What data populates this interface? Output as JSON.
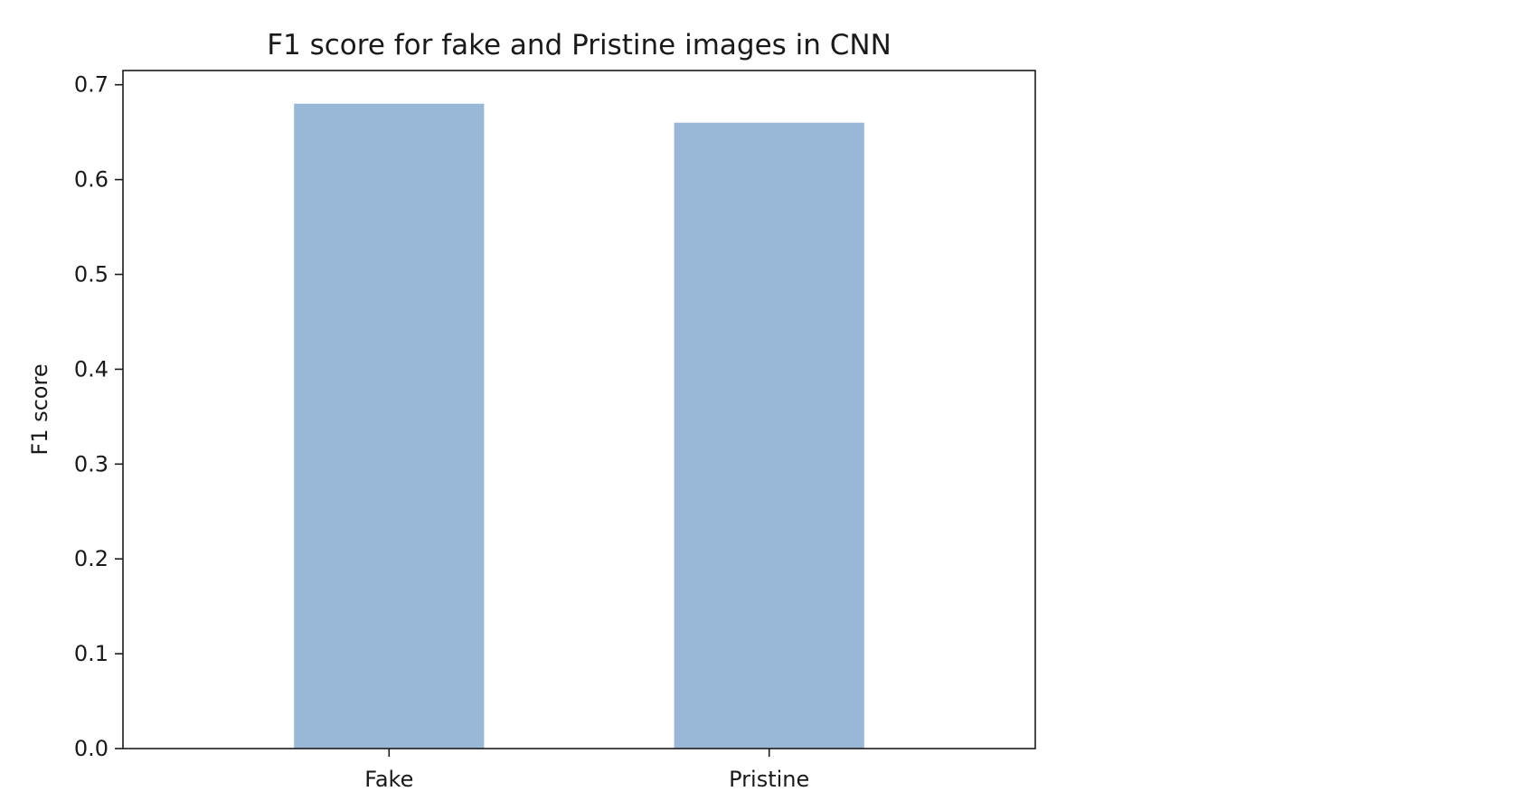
{
  "chart_data": {
    "type": "bar",
    "title": "F1 score for fake and Pristine images in CNN",
    "xlabel": "",
    "ylabel": "F1 score",
    "categories": [
      "Fake",
      "Pristine"
    ],
    "values": [
      0.68,
      0.66
    ],
    "ylim": [
      0,
      0.715
    ],
    "yticks": [
      "0.0",
      "0.1",
      "0.2",
      "0.3",
      "0.4",
      "0.5",
      "0.6",
      "0.7"
    ],
    "grid": false,
    "legend": "none",
    "bar_color": "#99b8d5",
    "axis_color": "#1a1a1a"
  }
}
